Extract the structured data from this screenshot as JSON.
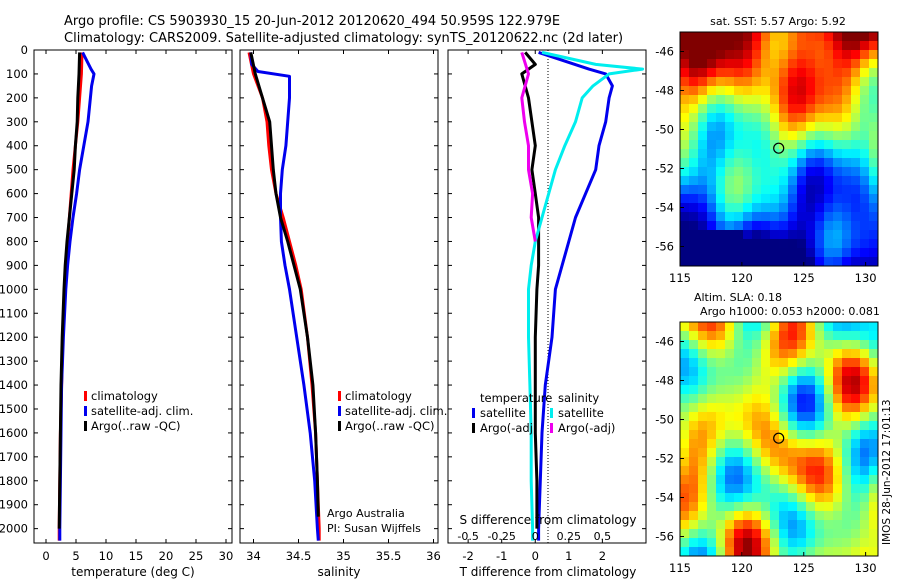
{
  "header": {
    "line1": "Argo profile: CS 5903930_15 20-Jun-2012 20120620_494 50.959S 122.979E",
    "line2": "Climatology: CARS2009. Satellite-adjusted climatology: synTS_20120622.nc (2d later)"
  },
  "side_stamp": "IMOS 28-Jun-2012 17:01:13",
  "chart_data": [
    {
      "type": "line",
      "id": "temperature",
      "xlabel": "temperature (deg C)",
      "xlim": [
        -2,
        31
      ],
      "ylim": [
        2060,
        0
      ],
      "xticks": [
        0,
        5,
        10,
        15,
        20,
        25,
        30
      ],
      "yticks": [
        0,
        100,
        200,
        300,
        400,
        500,
        600,
        700,
        800,
        900,
        1000,
        1100,
        1200,
        1300,
        1400,
        1500,
        1600,
        1700,
        1800,
        1900,
        2000
      ],
      "legend": [
        "climatology",
        "satellite-adj. clim.",
        "Argo(..raw -QC)"
      ],
      "colors": {
        "climatology": "#ff0000",
        "satellite": "#0000ee",
        "argo": "#000000"
      },
      "series": [
        {
          "name": "climatology",
          "color": "#ff0000",
          "depth": [
            10,
            100,
            200,
            300,
            400,
            500,
            600,
            700,
            800,
            900,
            1000,
            1200,
            1400,
            1600,
            1800,
            2000,
            2050
          ],
          "values": [
            6.0,
            5.9,
            5.6,
            5.3,
            4.9,
            4.5,
            4.2,
            3.9,
            3.6,
            3.3,
            3.1,
            2.8,
            2.6,
            2.4,
            2.3,
            2.2,
            2.2
          ]
        },
        {
          "name": "satellite-adj. clim.",
          "color": "#0000ee",
          "depth": [
            10,
            80,
            100,
            150,
            200,
            300,
            400,
            500,
            600,
            700,
            800,
            900,
            1000,
            1200,
            1400,
            1600,
            1800,
            2000,
            2050
          ],
          "values": [
            6.1,
            7.5,
            8.0,
            7.6,
            7.4,
            7.0,
            6.3,
            5.6,
            5.1,
            4.5,
            4.0,
            3.6,
            3.3,
            2.9,
            2.6,
            2.5,
            2.4,
            2.3,
            2.3
          ]
        },
        {
          "name": "Argo(..raw -QC)",
          "color": "#000000",
          "depth": [
            10,
            100,
            200,
            300,
            400,
            500,
            600,
            700,
            800,
            900,
            1000,
            1200,
            1400,
            1600,
            1800,
            2000
          ],
          "values": [
            5.6,
            5.5,
            5.3,
            5.2,
            4.9,
            4.7,
            4.3,
            3.9,
            3.5,
            3.2,
            3.0,
            2.7,
            2.5,
            2.4,
            2.3,
            2.2
          ]
        }
      ],
      "annotations": []
    },
    {
      "type": "line",
      "id": "salinity",
      "xlabel": "salinity",
      "xlim": [
        33.85,
        36.05
      ],
      "ylim": [
        2060,
        0
      ],
      "xticks": [
        34,
        34.5,
        35,
        35.5,
        36
      ],
      "legend": [
        "climatology",
        "satellite-adj. clim.",
        "Argo(..raw -QC)"
      ],
      "series": [
        {
          "name": "climatology",
          "color": "#ff0000",
          "depth": [
            10,
            100,
            150,
            200,
            300,
            400,
            500,
            600,
            700,
            800,
            900,
            1000,
            1200,
            1400,
            1600,
            1800,
            2000,
            2050
          ],
          "values": [
            33.95,
            34.0,
            34.05,
            34.1,
            34.15,
            34.17,
            34.2,
            34.25,
            34.33,
            34.4,
            34.47,
            34.53,
            34.6,
            34.65,
            34.69,
            34.71,
            34.73,
            34.73
          ]
        },
        {
          "name": "satellite-adj. clim.",
          "color": "#0000ee",
          "depth": [
            10,
            60,
            90,
            110,
            200,
            300,
            400,
            500,
            600,
            700,
            800,
            900,
            1000,
            1200,
            1400,
            1600,
            1800,
            2000,
            2050
          ],
          "values": [
            33.97,
            33.98,
            34.05,
            34.4,
            34.4,
            34.38,
            34.36,
            34.32,
            34.3,
            34.3,
            34.31,
            34.35,
            34.4,
            34.48,
            34.56,
            34.63,
            34.68,
            34.71,
            34.72
          ]
        },
        {
          "name": "Argo(..raw -QC)",
          "color": "#000000",
          "depth": [
            10,
            100,
            200,
            300,
            400,
            500,
            600,
            700,
            800,
            900,
            1000,
            1200,
            1400,
            1600,
            1800,
            1950
          ],
          "values": [
            33.97,
            34.02,
            34.1,
            34.18,
            34.2,
            34.22,
            34.25,
            34.3,
            34.38,
            34.45,
            34.52,
            34.6,
            34.66,
            34.69,
            34.71,
            34.72
          ]
        }
      ],
      "annotations": [
        "Argo Australia",
        "PI: Susan Wijffels"
      ]
    },
    {
      "type": "line",
      "id": "difference",
      "xlabel": "T difference from climatology",
      "xlabel_top": "S difference from climatology",
      "xlim": [
        -2.6,
        3.3
      ],
      "ylim": [
        2060,
        0
      ],
      "xticks": [
        -2,
        -1,
        0,
        1,
        2
      ],
      "xticks_s": [
        -0.5,
        -0.25,
        0,
        0.25,
        0.5
      ],
      "legend_groups": {
        "temperature": [
          "satellite",
          "Argo(-adj)"
        ],
        "salinity": [
          "satellite",
          "Argo(-adj)"
        ]
      },
      "series": [
        {
          "name": "T satellite",
          "color": "#0000ee",
          "depth": [
            10,
            80,
            100,
            150,
            200,
            300,
            400,
            500,
            600,
            700,
            800,
            900,
            1000,
            1200,
            1400,
            1600,
            1800,
            2000,
            2050
          ],
          "values": [
            0.1,
            1.6,
            2.1,
            2.3,
            2.2,
            2.1,
            1.9,
            1.8,
            1.5,
            1.2,
            1.0,
            0.8,
            0.6,
            0.5,
            0.3,
            0.2,
            0.15,
            0.1,
            0.1
          ]
        },
        {
          "name": "T Argo(-adj)",
          "color": "#000000",
          "depth": [
            10,
            60,
            100,
            200,
            300,
            400,
            500,
            600,
            700,
            800,
            900,
            1000,
            1200,
            1400,
            1600,
            1800,
            2000
          ],
          "values": [
            -0.3,
            0.0,
            -0.4,
            -0.2,
            -0.1,
            0.0,
            -0.1,
            0.0,
            0.1,
            0.1,
            0.1,
            0.05,
            0.0,
            0.0,
            0.0,
            0.05,
            0.05
          ]
        },
        {
          "name": "S satellite",
          "color": "#00eeee",
          "depth": [
            10,
            60,
            80,
            100,
            150,
            200,
            300,
            400,
            500,
            600,
            700,
            800,
            900,
            1000,
            1200,
            1400,
            1600,
            1800,
            2000,
            2050
          ],
          "values": [
            0.05,
            0.45,
            0.8,
            0.55,
            0.43,
            0.35,
            0.3,
            0.22,
            0.15,
            0.1,
            0.05,
            0.0,
            -0.03,
            -0.05,
            -0.05,
            -0.04,
            -0.03,
            -0.03,
            -0.02,
            -0.02
          ]
        },
        {
          "name": "S Argo(-adj)",
          "color": "#ee00ee",
          "depth": [
            10,
            100,
            200,
            300,
            400,
            500,
            600,
            700,
            800
          ],
          "values": [
            -0.1,
            -0.05,
            -0.1,
            -0.08,
            -0.05,
            -0.05,
            -0.02,
            -0.03,
            0.0
          ]
        }
      ]
    },
    {
      "type": "heatmap",
      "id": "sst_map",
      "title": "sat. SST: 5.57 Argo: 5.92",
      "xlim": [
        115,
        131
      ],
      "ylim": [
        -57,
        -45
      ],
      "xticks": [
        115,
        120,
        125,
        130
      ],
      "yticks": [
        -46,
        -48,
        -50,
        -52,
        -54,
        -56
      ],
      "marker": {
        "lon": 122.979,
        "lat": -50.959
      }
    },
    {
      "type": "heatmap",
      "id": "sla_map",
      "title": "Altim. SLA: 0.18",
      "subtitle": "Argo h1000: 0.053 h2000: 0.081",
      "xlim": [
        115,
        131
      ],
      "ylim": [
        -57,
        -45
      ],
      "xticks": [
        115,
        120,
        125,
        130
      ],
      "yticks": [
        -46,
        -48,
        -50,
        -52,
        -54,
        -56
      ],
      "marker": {
        "lon": 122.979,
        "lat": -50.959
      }
    }
  ]
}
